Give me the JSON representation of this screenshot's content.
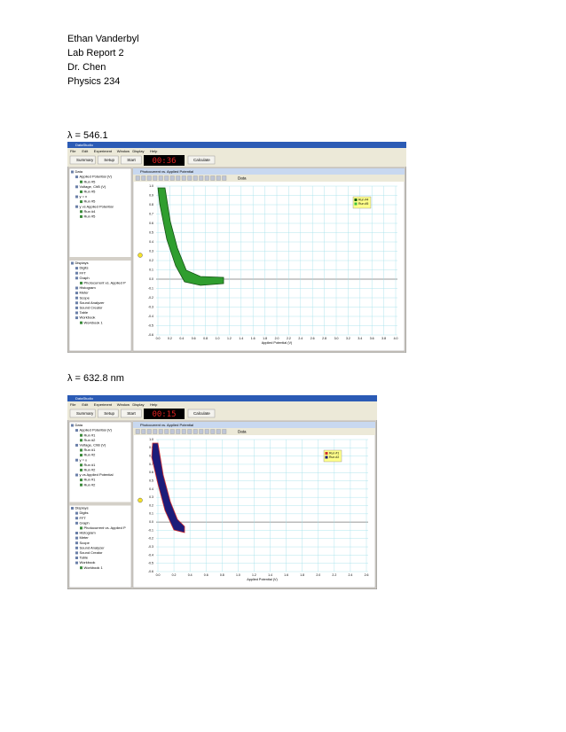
{
  "header": {
    "lines": [
      "Ethan Vanderbyl",
      "Lab Report 2",
      "Dr. Chen",
      "Physics 234"
    ]
  },
  "sections": [
    {
      "caption": "λ = 546.1",
      "window": {
        "title": "DataStudio",
        "menu": [
          "File",
          "Edit",
          "Experiment",
          "Window",
          "Display",
          "Help"
        ],
        "toolbar": [
          "Summary",
          "Setup",
          "Start"
        ],
        "timer": "00:36",
        "calculate": "Calculate",
        "data_tree": {
          "label": "Data",
          "children": [
            {
              "label": "Applied Potential (V)",
              "children": [
                {
                  "label": "Run #5"
                }
              ]
            },
            {
              "label": "Voltage, ChB (V)",
              "children": [
                {
                  "label": "Run #5"
                }
              ]
            },
            {
              "label": "y = x",
              "children": [
                {
                  "label": "Run #5"
                }
              ]
            },
            {
              "label": "y vs Applied Potential",
              "children": [
                {
                  "label": "Run #4"
                },
                {
                  "label": "Run #5"
                }
              ]
            }
          ]
        },
        "displays_tree": {
          "label": "Displays",
          "children": [
            {
              "label": "Digits"
            },
            {
              "label": "FFT"
            },
            {
              "label": "Graph",
              "children": [
                {
                  "label": "Photocurrent vs. Applied P"
                }
              ]
            },
            {
              "label": "Histogram"
            },
            {
              "label": "Meter"
            },
            {
              "label": "Scope"
            },
            {
              "label": "Sound Analyzer"
            },
            {
              "label": "Sound Creator"
            },
            {
              "label": "Table"
            },
            {
              "label": "Workbook",
              "children": [
                {
                  "label": "Workbook 1"
                }
              ]
            }
          ]
        },
        "graph": {
          "title": "Photocurrent vs. Applied Potential",
          "toolbar_label": "Data",
          "legend": [
            "Run #4",
            "Run #5"
          ],
          "yticks": [
            "1.0",
            "0.9",
            "0.8",
            "0.7",
            "0.6",
            "0.5",
            "0.4",
            "0.3",
            "0.2",
            "0.1",
            "0.0",
            "-0.1",
            "-0.2",
            "-0.3",
            "-0.4",
            "-0.5",
            "-0.6"
          ],
          "xticks": [
            "0.0",
            "0.2",
            "0.4",
            "0.6",
            "0.8",
            "1.0",
            "1.2",
            "1.4",
            "1.6",
            "1.8",
            "2.0",
            "2.2",
            "2.4",
            "2.6",
            "2.8",
            "3.0",
            "3.2",
            "3.4",
            "3.6",
            "3.8",
            "4.0"
          ],
          "x_label": "Applied Potential (V)"
        }
      }
    },
    {
      "caption": "λ = 632.8 nm",
      "window": {
        "title": "DataStudio",
        "menu": [
          "File",
          "Edit",
          "Experiment",
          "Window",
          "Display",
          "Help"
        ],
        "toolbar": [
          "Summary",
          "Setup",
          "Start"
        ],
        "timer": "00:15",
        "calculate": "Calculate",
        "data_tree": {
          "label": "Data",
          "children": [
            {
              "label": "Applied Potential (V)",
              "children": [
                {
                  "label": "Run #1"
                },
                {
                  "label": "Run #2"
                }
              ]
            },
            {
              "label": "Voltage, ChB (V)",
              "children": [
                {
                  "label": "Run #1"
                },
                {
                  "label": "Run #2"
                }
              ]
            },
            {
              "label": "y = x",
              "children": [
                {
                  "label": "Run #1"
                },
                {
                  "label": "Run #2"
                }
              ]
            },
            {
              "label": "y vs Applied Potential",
              "children": [
                {
                  "label": "Run #1"
                },
                {
                  "label": "Run #2"
                }
              ]
            }
          ]
        },
        "displays_tree": {
          "label": "Displays",
          "children": [
            {
              "label": "Digits"
            },
            {
              "label": "FFT"
            },
            {
              "label": "Graph",
              "children": [
                {
                  "label": "Photocurrent vs. Applied P"
                }
              ]
            },
            {
              "label": "Histogram"
            },
            {
              "label": "Meter"
            },
            {
              "label": "Scope"
            },
            {
              "label": "Sound Analyzer"
            },
            {
              "label": "Sound Creator"
            },
            {
              "label": "Table"
            },
            {
              "label": "Workbook",
              "children": [
                {
                  "label": "Workbook 1"
                }
              ]
            }
          ]
        },
        "graph": {
          "title": "Photocurrent vs. Applied Potential",
          "toolbar_label": "Data",
          "legend": [
            "Run #1",
            "Run #2"
          ],
          "yticks": [
            "1.0",
            "0.9",
            "0.8",
            "0.7",
            "0.6",
            "0.5",
            "0.4",
            "0.3",
            "0.2",
            "0.1",
            "0.0",
            "-0.1",
            "-0.2",
            "-0.3",
            "-0.4",
            "-0.5",
            "-0.6"
          ],
          "xticks": [
            "0.0",
            "0.2",
            "0.4",
            "0.6",
            "0.8",
            "1.0",
            "1.2",
            "1.4",
            "1.6",
            "1.8",
            "2.0",
            "2.2",
            "2.4",
            "2.6"
          ],
          "x_label": "Applied Potential (V)"
        }
      }
    }
  ]
}
